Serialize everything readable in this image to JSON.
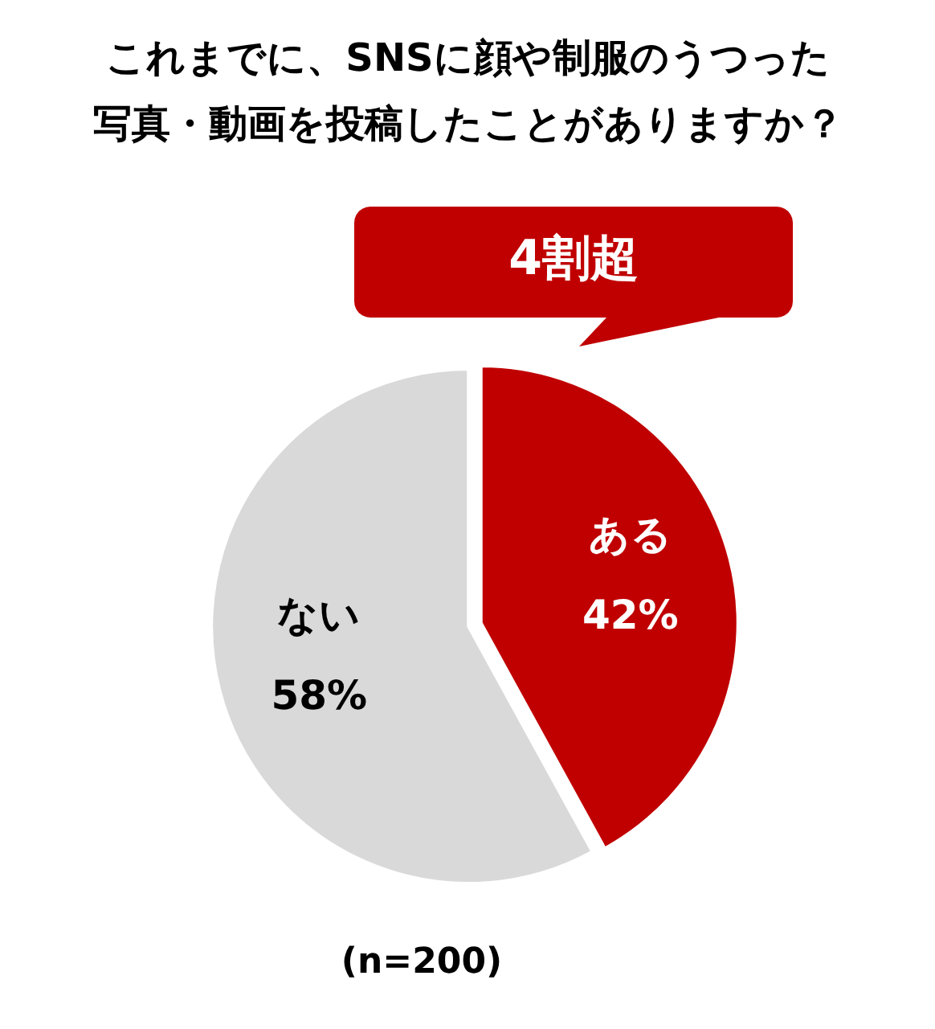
{
  "chart_data": {
    "type": "pie",
    "title": "これまでに、SNSに顔や制服のうつった写真・動画を投稿したことがありますか？",
    "categories": [
      "ある",
      "ない"
    ],
    "values": [
      42,
      58
    ],
    "colors": [
      "#c00000",
      "#d9d9d9"
    ],
    "value_labels": [
      "42%",
      "58%"
    ],
    "annotations": [
      "4割超",
      "(n=200)"
    ]
  }
}
